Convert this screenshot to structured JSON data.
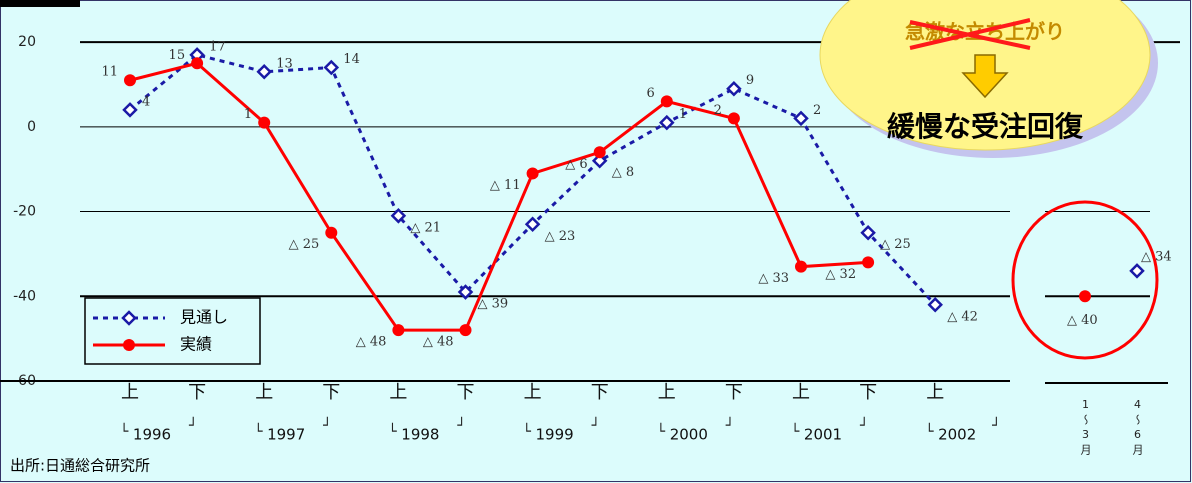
{
  "chart_data": [
    {
      "type": "line",
      "categories": [
        "上",
        "下",
        "上",
        "下",
        "上",
        "下",
        "上",
        "下",
        "上",
        "下",
        "上",
        "下",
        "上"
      ],
      "year_labels": [
        "1996",
        "1997",
        "1998",
        "1999",
        "2000",
        "2001",
        "2002"
      ],
      "series": [
        {
          "name": "見通し",
          "color": "#1a1aa6",
          "dashed": true,
          "marker": "diamond",
          "values": [
            4,
            17,
            13,
            14,
            -21,
            -39,
            -23,
            -8,
            1,
            9,
            2,
            -25,
            -42
          ],
          "value_labels": [
            "4",
            "17",
            "13",
            "14",
            "△ 21",
            "△ 39",
            "△ 23",
            "△ 8",
            "1",
            "9",
            "2",
            "△ 25",
            "△ 42"
          ]
        },
        {
          "name": "実績",
          "color": "#ff0000",
          "dashed": false,
          "marker": "circle",
          "values": [
            11,
            15,
            1,
            -25,
            -48,
            -48,
            -11,
            -6,
            6,
            2,
            -33,
            -32,
            null
          ],
          "value_labels": [
            "11",
            "15",
            "1",
            "△ 25",
            "△ 48",
            "△ 48",
            "△ 11",
            "△ 6",
            "6",
            "2",
            "△ 33",
            "△ 32",
            null
          ]
        }
      ],
      "ylim": [
        -60,
        29
      ],
      "yticks": [
        20,
        0,
        -20,
        -40,
        -60
      ],
      "grid": true,
      "legend": "lower left"
    },
    {
      "type": "point",
      "categories": [
        "1～3月",
        "4～6月"
      ],
      "series": [
        {
          "color": "#ff0000",
          "marker": "circle",
          "values": [
            -40,
            null
          ],
          "value_labels": [
            "△ 40",
            null
          ]
        },
        {
          "color": "#1a1aa6",
          "marker": "diamond",
          "values": [
            null,
            -34
          ],
          "value_labels": [
            null,
            "△ 34"
          ]
        }
      ],
      "ylim": [
        -60,
        29
      ]
    }
  ],
  "annotations": {
    "struck": "急激な立ち上がり",
    "revised": "緩慢な受注回復"
  },
  "source": "出所:日通総合研究所"
}
